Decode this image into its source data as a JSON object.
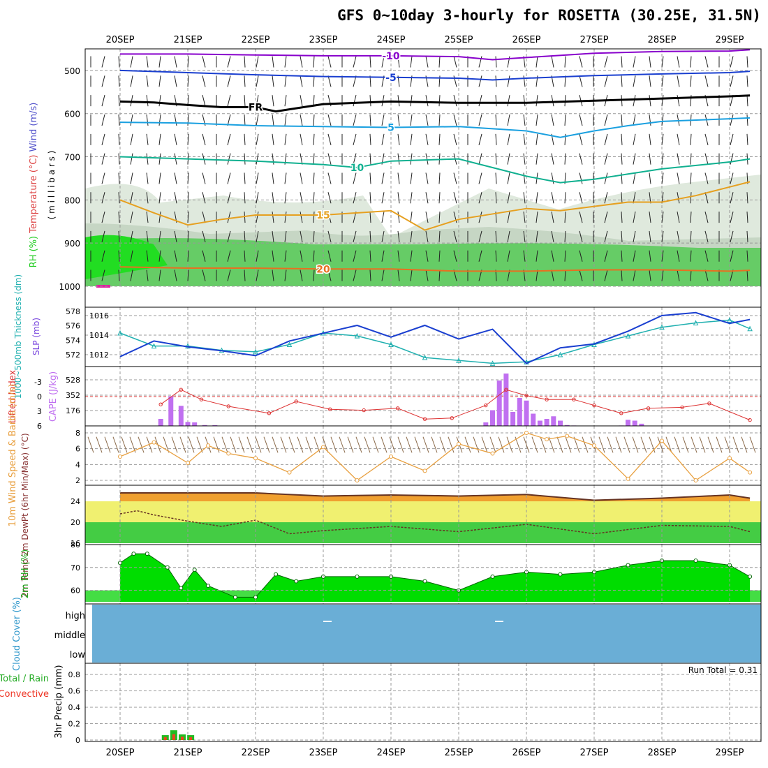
{
  "title": "GFS 0~10day 3-hourly for ROSETTA (30.25E, 31.5N)",
  "dates": [
    "20SEP",
    "21SEP",
    "22SEP",
    "23SEP",
    "24SEP",
    "25SEP",
    "26SEP",
    "27SEP",
    "28SEP",
    "29SEP"
  ],
  "colors": {
    "grid": "#999999",
    "purple": "#8800cc",
    "blue": "#1a3fd0",
    "cyan": "#1aa0e0",
    "teal": "#10b090",
    "orange": "#e6a020",
    "darkorange": "#e87020",
    "thick": "#20b0b0",
    "green": "#22cc22",
    "lightgreen": "#44dd44",
    "cape": "#c070f0",
    "li": "#dd3333",
    "wind": "#e8a040",
    "cloud": "#6aaed6",
    "precip_green": "#22bb22",
    "precip_red": "#ee4422"
  },
  "chart_data": [
    {
      "type": "line",
      "panel": "upper-air",
      "ylabel_parts": [
        "RH (%)",
        "Temperature (°C)",
        "Wind (m/s)"
      ],
      "yunits": "( m i l l i b a r s )",
      "yticks": [
        "500",
        "600",
        "700",
        "800",
        "900",
        "1000"
      ],
      "ylim": [
        450,
        1000
      ],
      "series": [
        {
          "name": "-10 isotherm",
          "label": "-10",
          "x": [
            0,
            1,
            2,
            3,
            4,
            5,
            5.5,
            6,
            7,
            8,
            9,
            9.3
          ],
          "y": [
            462,
            462,
            464,
            466,
            466,
            468,
            475,
            470,
            460,
            456,
            455,
            452
          ]
        },
        {
          "name": "-5 isotherm",
          "label": "-5",
          "x": [
            0,
            1,
            2,
            3,
            4,
            5,
            5.5,
            6,
            7,
            8,
            9,
            9.3
          ],
          "y": [
            500,
            505,
            510,
            514,
            516,
            518,
            522,
            518,
            512,
            508,
            505,
            502
          ]
        },
        {
          "name": "freezing level",
          "label": "FR",
          "x": [
            0,
            0.5,
            1,
            1.5,
            2,
            2.3,
            3,
            4,
            5,
            6,
            7,
            8,
            9,
            9.3
          ],
          "y": [
            572,
            574,
            580,
            585,
            585,
            595,
            578,
            572,
            575,
            575,
            570,
            565,
            560,
            558
          ]
        },
        {
          "name": "5 isotherm",
          "label": "5",
          "x": [
            0,
            1,
            2,
            3,
            4,
            5,
            6,
            6.5,
            7,
            7.5,
            8,
            9,
            9.3
          ],
          "y": [
            620,
            622,
            628,
            630,
            632,
            630,
            640,
            655,
            640,
            628,
            618,
            612,
            610
          ]
        },
        {
          "name": "10 isotherm",
          "label": "10",
          "x": [
            0,
            1,
            2,
            3,
            3.5,
            4,
            5,
            6,
            6.5,
            7,
            7.5,
            8,
            9,
            9.3
          ],
          "y": [
            700,
            705,
            710,
            718,
            725,
            710,
            705,
            745,
            760,
            752,
            740,
            728,
            712,
            705
          ]
        },
        {
          "name": "15 isotherm",
          "label": "15",
          "x": [
            0,
            0.5,
            1,
            1.5,
            2,
            3,
            4,
            4.5,
            5,
            6,
            6.5,
            7,
            7.5,
            8,
            8.5,
            9,
            9.3
          ],
          "y": [
            800,
            830,
            858,
            845,
            835,
            835,
            825,
            870,
            845,
            820,
            825,
            815,
            805,
            805,
            790,
            770,
            758
          ]
        },
        {
          "name": "20 isotherm",
          "label": "20",
          "x": [
            0,
            1,
            2,
            3,
            4,
            5,
            6,
            7,
            8,
            9,
            9.3
          ],
          "y": [
            955,
            958,
            958,
            960,
            960,
            965,
            965,
            962,
            962,
            965,
            963
          ]
        }
      ],
      "rh_note": "shaded RH layers"
    },
    {
      "type": "line",
      "panel": "thickness-slp",
      "ylabel_left": "1000~500mb Thickness (dm)",
      "ylabel_right": "SLP (mb)",
      "yticks_left": [
        "572",
        "574",
        "576",
        "578"
      ],
      "yticks_right": [
        "1012",
        "1014",
        "1016"
      ],
      "series": [
        {
          "name": "Thickness (dm)",
          "x": [
            0,
            0.5,
            1,
            1.5,
            2,
            2.5,
            3,
            3.5,
            4,
            4.5,
            5,
            5.5,
            6,
            6.5,
            7,
            7.5,
            8,
            8.5,
            9,
            9.3
          ],
          "y": [
            575,
            573.2,
            573.2,
            572.6,
            572.4,
            573.4,
            575,
            574.6,
            573.4,
            571.6,
            571.2,
            570.8,
            571.0,
            572.0,
            573.4,
            574.6,
            575.8,
            576.4,
            576.8,
            575.6
          ]
        },
        {
          "name": "SLP (mb)",
          "x": [
            0,
            0.5,
            1,
            1.5,
            2,
            2.5,
            3,
            3.5,
            4,
            4.5,
            5,
            5.5,
            6,
            6.5,
            7,
            7.5,
            8,
            8.5,
            9,
            9.3
          ],
          "y": [
            1011.8,
            1013.4,
            1012.8,
            1012.4,
            1011.9,
            1013.4,
            1014.2,
            1015.0,
            1013.8,
            1015.0,
            1013.6,
            1014.6,
            1011.1,
            1012.7,
            1013.1,
            1014.4,
            1016.0,
            1016.3,
            1015.2,
            1015.6
          ]
        }
      ]
    },
    {
      "type": "bar",
      "panel": "cape-li",
      "ylabel_left": "Lifted Index",
      "ylabel_right": "CAPE (J/kg)",
      "yticks_li": [
        "-3",
        "0",
        "3",
        "6"
      ],
      "yticks_cape": [
        "176",
        "352",
        "528"
      ],
      "cape_x": [
        0.6,
        0.75,
        0.9,
        1.0,
        1.1,
        1.25,
        1.4,
        5.4,
        5.5,
        5.6,
        5.7,
        5.8,
        5.9,
        6.0,
        6.1,
        6.2,
        6.3,
        6.4,
        6.5,
        6.6,
        6.7,
        7.4,
        7.5,
        7.6,
        7.7
      ],
      "cape_values": [
        80,
        340,
        230,
        45,
        40,
        10,
        8,
        40,
        180,
        520,
        600,
        160,
        320,
        290,
        140,
        60,
        80,
        110,
        60,
        10,
        5,
        5,
        70,
        60,
        25
      ],
      "li_x": [
        0.6,
        0.9,
        1.2,
        1.6,
        2.2,
        2.6,
        3.1,
        3.6,
        4.1,
        4.5,
        4.9,
        5.4,
        5.7,
        6.0,
        6.3,
        6.7,
        7.0,
        7.4,
        7.8,
        8.3,
        8.7,
        9.3
      ],
      "li_values": [
        1.6,
        -1.4,
        0.6,
        2.0,
        3.4,
        1.0,
        2.6,
        2.8,
        2.4,
        4.6,
        4.4,
        1.8,
        -1.4,
        -0.2,
        0.6,
        0.6,
        1.8,
        3.4,
        2.4,
        2.2,
        1.4,
        4.8
      ]
    },
    {
      "type": "line",
      "panel": "wind10m",
      "ylabel": "10m Wind Speed & Barbs (m/s)",
      "yticks": [
        "2",
        "4",
        "6",
        "8"
      ],
      "ylim": [
        1.5,
        8.5
      ],
      "series": [
        {
          "name": "10m wind speed",
          "x": [
            0,
            0.5,
            1,
            1.3,
            1.6,
            2,
            2.5,
            3,
            3.5,
            4,
            4.5,
            5,
            5.5,
            6,
            6.3,
            6.6,
            7,
            7.5,
            8,
            8.5,
            9,
            9.3
          ],
          "y": [
            5.0,
            6.8,
            4.2,
            6.4,
            5.4,
            4.8,
            3.0,
            6.2,
            2.0,
            5.0,
            3.2,
            6.6,
            5.4,
            8.0,
            7.2,
            7.6,
            6.4,
            2.2,
            7.0,
            2.0,
            4.8,
            3.0
          ]
        }
      ]
    },
    {
      "type": "area",
      "panel": "temp2m",
      "ylabel": "2m Temp 2m DewPt (6hr Min/Max) (°C)",
      "yticks": [
        "16",
        "20",
        "24"
      ],
      "ylim": [
        16,
        26.5
      ],
      "series": [
        {
          "name": "2m Temp",
          "x": [
            0,
            1,
            2,
            3,
            4,
            5,
            6,
            7,
            8,
            9,
            9.3
          ],
          "y": [
            25.6,
            25.6,
            25.6,
            25.0,
            25.2,
            25.0,
            25.3,
            24.2,
            24.6,
            25.2,
            24.6
          ]
        },
        {
          "name": "2m DewPt",
          "x": [
            0,
            0.25,
            0.5,
            1,
            1.5,
            2,
            2.5,
            3,
            4,
            5,
            6,
            7,
            8,
            9,
            9.3
          ],
          "y": [
            21.6,
            22.2,
            21.4,
            20.2,
            19.2,
            20.4,
            17.8,
            18.4,
            19.2,
            18.2,
            19.6,
            17.8,
            19.4,
            19.2,
            18.2
          ]
        }
      ]
    },
    {
      "type": "area",
      "panel": "rh2m",
      "ylabel": "2m RH (%)",
      "yticks": [
        "60",
        "70",
        "80"
      ],
      "ylim": [
        55,
        80
      ],
      "series": [
        {
          "name": "2m RH",
          "x": [
            0,
            0.2,
            0.4,
            0.7,
            0.9,
            1.1,
            1.3,
            1.7,
            2,
            2.3,
            2.6,
            3,
            3.5,
            4,
            4.5,
            5,
            5.5,
            6,
            6.5,
            7,
            7.5,
            8,
            8.5,
            9,
            9.3
          ],
          "y": [
            72,
            76,
            76,
            70,
            61,
            69,
            62,
            57,
            57,
            67,
            64,
            66,
            66,
            66,
            64,
            60,
            66,
            68,
            67,
            68,
            71,
            73,
            73,
            71,
            66
          ]
        }
      ]
    },
    {
      "type": "heatmap",
      "panel": "cloud",
      "ylabel": "Cloud Cover (%)",
      "levels": [
        "high",
        "middle",
        "low"
      ]
    },
    {
      "type": "bar",
      "panel": "precip",
      "ylabel": "3hr Precip (mm)",
      "ylabel2": "Total / Rain",
      "ylabel3": "Convective",
      "run_total": "Run Total = 0.31",
      "yticks": [
        "0",
        "0.2",
        "0.4",
        "0.6",
        "0.8"
      ],
      "ylim": [
        0,
        1.0
      ],
      "x": [
        0.75,
        0.875,
        1.0,
        1.125
      ],
      "values": [
        0.06,
        0.12,
        0.07,
        0.06
      ]
    }
  ]
}
